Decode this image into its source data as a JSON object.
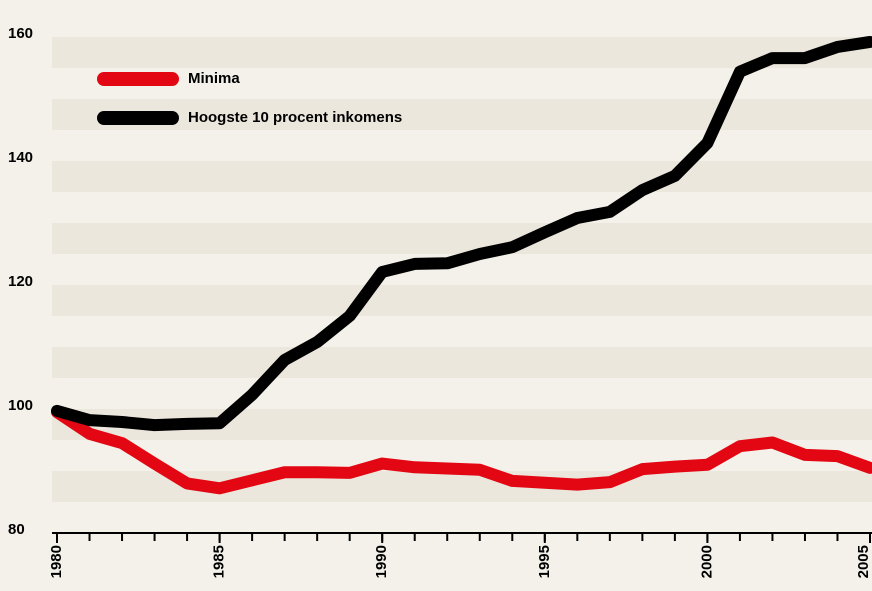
{
  "chart_data": {
    "type": "line",
    "x": [
      1980,
      1981,
      1982,
      1983,
      1984,
      1985,
      1986,
      1987,
      1988,
      1989,
      1990,
      1991,
      1992,
      1993,
      1994,
      1995,
      1996,
      1997,
      1998,
      1999,
      2000,
      2001,
      2002,
      2003,
      2004,
      2005
    ],
    "series": [
      {
        "name": "Minima",
        "color": "#e30613",
        "values": [
          99.5,
          96,
          94.5,
          91.2,
          88,
          87.2,
          88.5,
          89.8,
          89.8,
          89.7,
          91.2,
          90.6,
          90.4,
          90.2,
          88.4,
          88.1,
          87.8,
          88.2,
          90.3,
          90.7,
          91,
          94,
          94.6,
          92.6,
          92.4,
          90.5
        ]
      },
      {
        "name": "Hoogste 10 procent inkomens",
        "color": "#000000",
        "values": [
          99.7,
          98.2,
          97.9,
          97.4,
          97.6,
          97.7,
          102.3,
          107.9,
          110.8,
          115,
          122.1,
          123.4,
          123.5,
          125,
          126.1,
          128.5,
          130.8,
          131.8,
          135.3,
          137.6,
          142.9,
          154.4,
          156.6,
          156.6,
          158.4,
          159.2
        ]
      }
    ],
    "xlim": [
      1980,
      2005
    ],
    "xticks": [
      1980,
      1985,
      1990,
      1995,
      2000,
      2005
    ],
    "ylim": [
      80,
      160
    ],
    "yticks": [
      80,
      100,
      120,
      140,
      160
    ],
    "legend": "upper left"
  }
}
